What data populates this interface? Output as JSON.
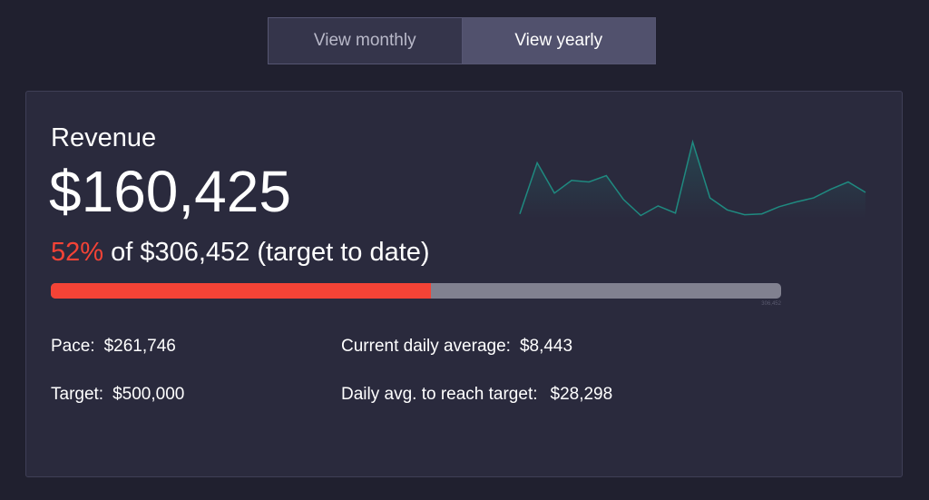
{
  "toggle": {
    "monthly_label": "View monthly",
    "yearly_label": "View yearly",
    "selected": "yearly"
  },
  "revenue": {
    "title": "Revenue",
    "amount": "$160,425",
    "percent_label": "52%",
    "target_text": "of $306,452 (target to date)",
    "progress_fraction": 0.52,
    "progress_caption": "306,452"
  },
  "stats": {
    "pace_label": "Pace:",
    "pace_value": "$261,746",
    "target_label": "Target:",
    "target_value": "$500,000",
    "daily_avg_label": "Current daily average:",
    "daily_avg_value": "$8,443",
    "reach_label": "Daily avg. to reach target:",
    "reach_value": "$28,298"
  },
  "sparkline": {
    "values": [
      6,
      70,
      32,
      48,
      46,
      54,
      24,
      4,
      16,
      7,
      96,
      26,
      11,
      5,
      6,
      15,
      21,
      26,
      37,
      46,
      33
    ],
    "ylim": [
      0,
      100
    ],
    "line_color": "#1f8a80",
    "fill_color": "#1f8a80"
  },
  "colors": {
    "accent_red": "#f44336",
    "track_gray": "#818190",
    "card_bg": "#2a2a3d",
    "page_bg": "#20202f"
  }
}
